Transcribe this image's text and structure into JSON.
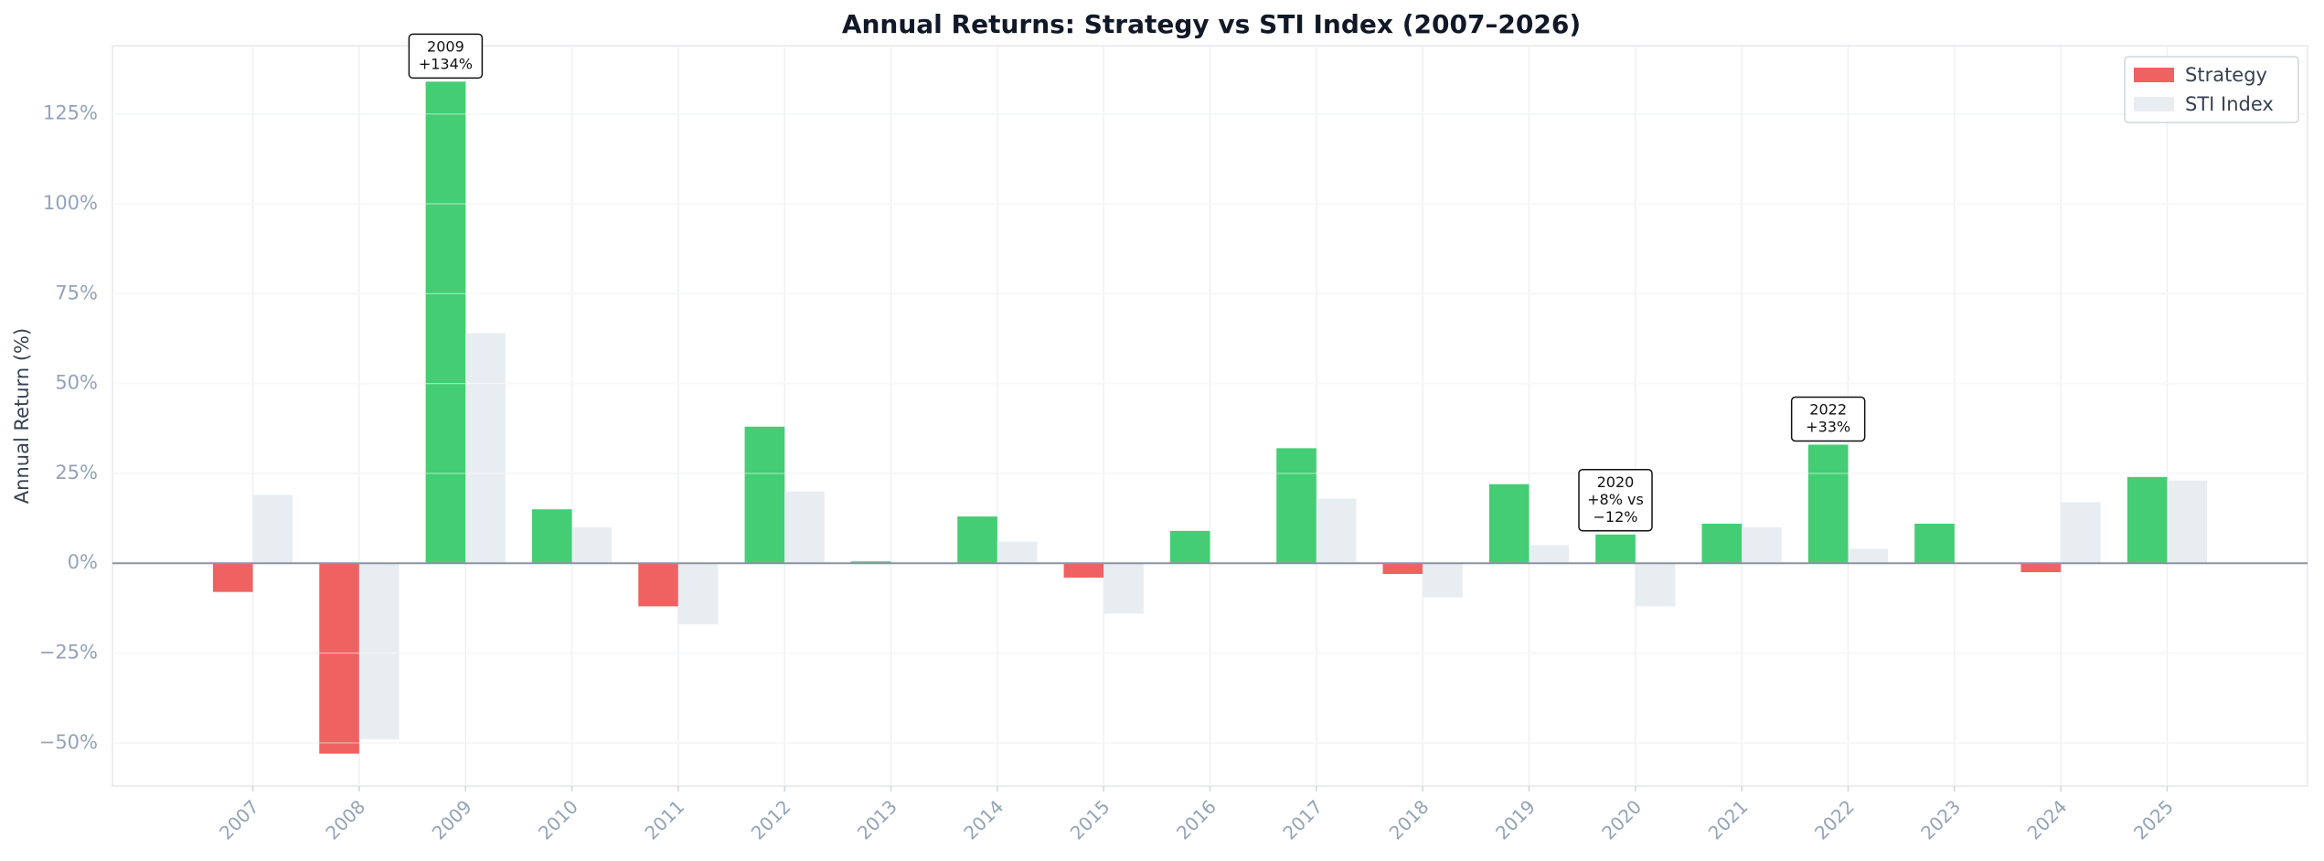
{
  "chart_data": {
    "type": "bar",
    "title": "Annual Returns: Strategy vs STI Index (2007–2026)",
    "y_label": "Annual Return (%)",
    "categories": [
      "2007",
      "2008",
      "2009",
      "2010",
      "2011",
      "2012",
      "2013",
      "2014",
      "2015",
      "2016",
      "2017",
      "2018",
      "2019",
      "2020",
      "2021",
      "2022",
      "2023",
      "2024",
      "2025"
    ],
    "series": [
      {
        "name": "Strategy",
        "color": "#f06262",
        "positive_color": "#44cd74",
        "values": [
          -8,
          -53,
          134,
          15,
          -12,
          38,
          0.5,
          13,
          -4,
          9,
          32,
          -3,
          22,
          8,
          11,
          33,
          11,
          -2.5,
          24
        ]
      },
      {
        "name": "STI Index",
        "color": "#e8edf2",
        "values": [
          19,
          -49,
          64,
          10,
          -17,
          20,
          0,
          6,
          -14,
          0,
          18,
          -9.5,
          5,
          -12,
          10,
          4,
          0,
          17,
          23
        ]
      }
    ],
    "ylim": [
      -62,
      144
    ],
    "yticks": [
      {
        "value": -50,
        "label": "−50%"
      },
      {
        "value": -25,
        "label": "−25%"
      },
      {
        "value": 0,
        "label": "0%"
      },
      {
        "value": 25,
        "label": "25%"
      },
      {
        "value": 50,
        "label": "50%"
      },
      {
        "value": 75,
        "label": "75%"
      },
      {
        "value": 100,
        "label": "100%"
      },
      {
        "value": 125,
        "label": "125%"
      }
    ],
    "grid": true,
    "legend": "upper right",
    "annotations": [
      {
        "x": "2009",
        "lines": [
          "2009",
          "+134%"
        ]
      },
      {
        "x": "2020",
        "lines": [
          "2020",
          "+8% vs",
          "−12%"
        ]
      },
      {
        "x": "2022",
        "lines": [
          "2022",
          "+33%"
        ]
      }
    ]
  }
}
